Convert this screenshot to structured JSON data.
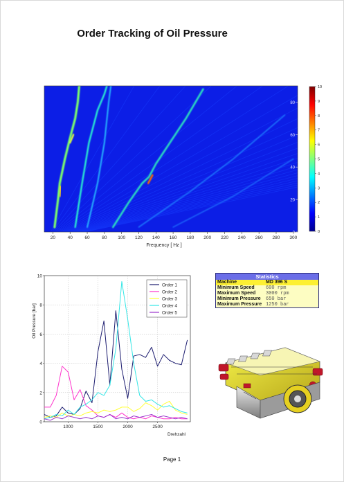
{
  "page": {
    "title": "Order Tracking of Oil Pressure",
    "footer": "Page 1"
  },
  "spectrogram": {
    "xlabel": "Frequency [ Hz ]",
    "xticks": [
      20,
      40,
      60,
      80,
      100,
      120,
      140,
      160,
      180,
      200,
      220,
      240,
      260,
      280,
      300
    ],
    "xlim": [
      10,
      305
    ],
    "ylim": [
      0,
      90
    ],
    "yticks_right": [
      0,
      20,
      40,
      60,
      80
    ],
    "colorbar_ticks": [
      0,
      1,
      2,
      3,
      4,
      5,
      6,
      7,
      8,
      9,
      10
    ],
    "colorbar_range": [
      0,
      10
    ],
    "colormap": [
      "#00008f",
      "#0000ff",
      "#0080ff",
      "#00ffff",
      "#80ff80",
      "#ffff00",
      "#ff8000",
      "#ff0000",
      "#800000"
    ]
  },
  "chart_data": {
    "type": "line",
    "xlabel": "Drehzahl",
    "ylabel": "Oil Pressure [bar]",
    "xlim": [
      600,
      3050
    ],
    "ylim": [
      0,
      10
    ],
    "xticks": [
      1000,
      1500,
      2000,
      2500
    ],
    "yticks": [
      0,
      2,
      4,
      6,
      8,
      10
    ],
    "grid": true,
    "legend_position": "top-right",
    "x": [
      600,
      700,
      800,
      900,
      1000,
      1100,
      1200,
      1300,
      1400,
      1500,
      1600,
      1700,
      1800,
      1900,
      2000,
      2100,
      2200,
      2300,
      2400,
      2500,
      2600,
      2700,
      2800,
      2900,
      3000
    ],
    "series": [
      {
        "name": "Order 1",
        "color": "#1a1a6e",
        "values": [
          0.5,
          0.3,
          0.4,
          1.0,
          0.6,
          0.5,
          0.9,
          2.1,
          1.3,
          4.8,
          6.9,
          2.5,
          7.6,
          3.6,
          1.6,
          4.5,
          4.6,
          4.4,
          5.1,
          3.8,
          4.6,
          4.2,
          4.0,
          3.9,
          5.6
        ]
      },
      {
        "name": "Order 2",
        "color": "#ff33cc",
        "values": [
          1.0,
          1.0,
          1.8,
          3.8,
          3.4,
          1.5,
          2.2,
          1.1,
          0.8,
          0.4,
          0.3,
          0.5,
          0.3,
          0.6,
          0.3,
          0.2,
          0.3,
          0.2,
          0.4,
          0.3,
          0.2,
          0.2,
          0.3,
          0.2,
          0.2
        ]
      },
      {
        "name": "Order 3",
        "color": "#ffff33",
        "values": [
          0.3,
          0.4,
          0.3,
          0.6,
          0.4,
          0.5,
          0.4,
          0.6,
          0.7,
          0.6,
          0.8,
          0.7,
          0.8,
          1.0,
          1.0,
          0.7,
          0.9,
          1.3,
          1.1,
          0.8,
          1.2,
          1.4,
          0.8,
          0.6,
          0.5
        ]
      },
      {
        "name": "Order 4",
        "color": "#33e6e6",
        "values": [
          0.2,
          0.3,
          0.5,
          0.4,
          0.8,
          0.5,
          1.0,
          1.2,
          1.5,
          2.0,
          1.8,
          2.5,
          5.0,
          9.6,
          7.0,
          4.0,
          1.8,
          1.4,
          1.5,
          1.2,
          1.0,
          1.1,
          0.9,
          0.7,
          0.6
        ]
      },
      {
        "name": "Order 5",
        "color": "#9933cc",
        "values": [
          0.2,
          0.1,
          0.3,
          0.2,
          0.4,
          0.3,
          0.2,
          0.3,
          0.2,
          0.4,
          0.3,
          0.5,
          0.2,
          0.3,
          0.2,
          0.4,
          0.3,
          0.4,
          0.5,
          0.3,
          0.4,
          0.3,
          0.2,
          0.3,
          0.2
        ]
      }
    ]
  },
  "statistics": {
    "title": "Statistics",
    "rows": [
      {
        "key": "Machine",
        "value": "MD 396 S"
      },
      {
        "key": "Minimum Speed",
        "value": "600 rpm"
      },
      {
        "key": "Maximum Speed",
        "value": "3000 rpm"
      },
      {
        "key": "Minimum Pressure",
        "value": "650 bar"
      },
      {
        "key": "Maximum Pressure",
        "value": "1250 bar"
      }
    ]
  },
  "engine_image": {
    "icon": "engine-3d-model-icon"
  }
}
